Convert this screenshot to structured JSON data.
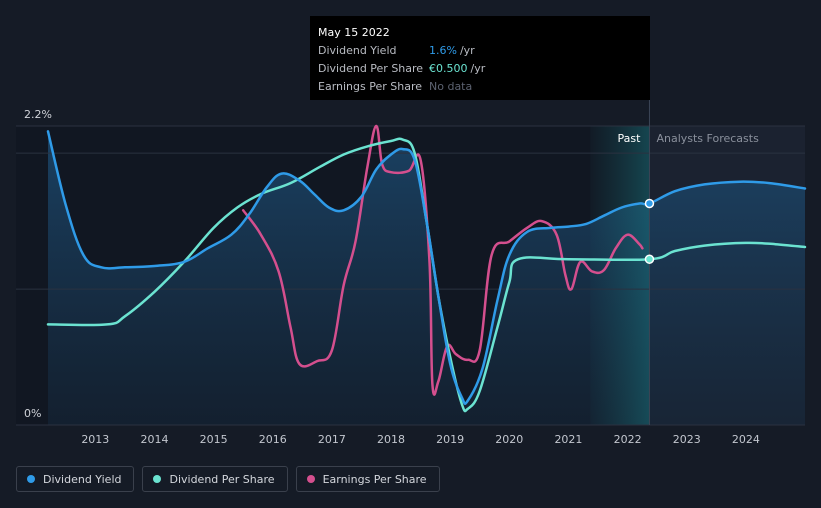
{
  "tooltip": {
    "date": "May 15 2022",
    "rows": [
      {
        "label": "Dividend Yield",
        "value": "1.6%",
        "unit": "/yr"
      },
      {
        "label": "Dividend Per Share",
        "value": "€0.500",
        "unit": "/yr"
      },
      {
        "label": "Earnings Per Share",
        "value": "No data",
        "unit": ""
      }
    ]
  },
  "labels": {
    "past": "Past",
    "forecast": "Analysts Forecasts"
  },
  "legend": [
    {
      "label": "Dividend Yield",
      "color": "#2f9be8"
    },
    {
      "label": "Dividend Per Share",
      "color": "#6be3d1"
    },
    {
      "label": "Earnings Per Share",
      "color": "#d44f8e"
    }
  ],
  "chart_data": {
    "type": "line",
    "y_tick_labels": [
      "2.2%",
      "0%"
    ],
    "ylim": [
      0,
      2.2
    ],
    "x_ticks": [
      "2013",
      "2014",
      "2015",
      "2016",
      "2017",
      "2018",
      "2019",
      "2020",
      "2021",
      "2022",
      "2023",
      "2024"
    ],
    "xlim": [
      2012.2,
      2025.0
    ],
    "past_region": [
      2021.37,
      2022.37
    ],
    "grid": "horizontal",
    "series": [
      {
        "name": "Dividend Yield",
        "color": "#2f9be8",
        "points": [
          [
            2012.2,
            2.16
          ],
          [
            2012.5,
            1.62
          ],
          [
            2012.8,
            1.25
          ],
          [
            2013.1,
            1.16
          ],
          [
            2013.5,
            1.16
          ],
          [
            2014.0,
            1.17
          ],
          [
            2014.5,
            1.2
          ],
          [
            2014.9,
            1.3
          ],
          [
            2015.3,
            1.4
          ],
          [
            2015.6,
            1.55
          ],
          [
            2015.9,
            1.75
          ],
          [
            2016.15,
            1.85
          ],
          [
            2016.45,
            1.8
          ],
          [
            2016.7,
            1.7
          ],
          [
            2016.95,
            1.6
          ],
          [
            2017.2,
            1.58
          ],
          [
            2017.5,
            1.68
          ],
          [
            2017.75,
            1.88
          ],
          [
            2018.0,
            1.99
          ],
          [
            2018.2,
            2.03
          ],
          [
            2018.4,
            1.95
          ],
          [
            2018.6,
            1.5
          ],
          [
            2018.8,
            0.95
          ],
          [
            2019.0,
            0.45
          ],
          [
            2019.2,
            0.2
          ],
          [
            2019.3,
            0.18
          ],
          [
            2019.55,
            0.42
          ],
          [
            2019.8,
            0.92
          ],
          [
            2020.0,
            1.25
          ],
          [
            2020.3,
            1.42
          ],
          [
            2020.7,
            1.45
          ],
          [
            2021.0,
            1.46
          ],
          [
            2021.3,
            1.48
          ],
          [
            2021.6,
            1.54
          ],
          [
            2021.9,
            1.6
          ],
          [
            2022.2,
            1.63
          ],
          [
            2022.37,
            1.63
          ],
          [
            2022.8,
            1.72
          ],
          [
            2023.3,
            1.77
          ],
          [
            2023.9,
            1.79
          ],
          [
            2024.4,
            1.78
          ],
          [
            2025.0,
            1.74
          ]
        ]
      },
      {
        "name": "Dividend Per Share",
        "color": "#6be3d1",
        "points": [
          [
            2012.2,
            0.74
          ],
          [
            2013.2,
            0.74
          ],
          [
            2013.5,
            0.8
          ],
          [
            2014.0,
            0.98
          ],
          [
            2014.5,
            1.2
          ],
          [
            2015.0,
            1.45
          ],
          [
            2015.4,
            1.6
          ],
          [
            2015.8,
            1.7
          ],
          [
            2016.3,
            1.78
          ],
          [
            2016.8,
            1.9
          ],
          [
            2017.2,
            1.99
          ],
          [
            2017.6,
            2.05
          ],
          [
            2018.0,
            2.09
          ],
          [
            2018.2,
            2.1
          ],
          [
            2018.4,
            2.0
          ],
          [
            2018.6,
            1.5
          ],
          [
            2018.8,
            0.95
          ],
          [
            2019.0,
            0.5
          ],
          [
            2019.2,
            0.15
          ],
          [
            2019.3,
            0.12
          ],
          [
            2019.5,
            0.25
          ],
          [
            2019.8,
            0.72
          ],
          [
            2020.0,
            1.05
          ],
          [
            2020.15,
            1.22
          ],
          [
            2021.0,
            1.22
          ],
          [
            2022.37,
            1.22
          ],
          [
            2022.8,
            1.28
          ],
          [
            2023.3,
            1.32
          ],
          [
            2024.0,
            1.34
          ],
          [
            2024.5,
            1.33
          ],
          [
            2025.0,
            1.31
          ]
        ]
      },
      {
        "name": "Earnings Per Share",
        "color": "#d44f8e",
        "points": [
          [
            2015.5,
            1.58
          ],
          [
            2015.8,
            1.4
          ],
          [
            2016.1,
            1.13
          ],
          [
            2016.3,
            0.72
          ],
          [
            2016.45,
            0.45
          ],
          [
            2016.75,
            0.47
          ],
          [
            2017.0,
            0.55
          ],
          [
            2017.2,
            1.03
          ],
          [
            2017.4,
            1.35
          ],
          [
            2017.6,
            1.9
          ],
          [
            2017.75,
            2.2
          ],
          [
            2017.85,
            1.92
          ],
          [
            2018.0,
            1.86
          ],
          [
            2018.3,
            1.87
          ],
          [
            2018.5,
            1.95
          ],
          [
            2018.65,
            1.2
          ],
          [
            2018.7,
            0.3
          ],
          [
            2018.8,
            0.32
          ],
          [
            2018.95,
            0.58
          ],
          [
            2019.1,
            0.52
          ],
          [
            2019.3,
            0.48
          ],
          [
            2019.5,
            0.55
          ],
          [
            2019.7,
            1.25
          ],
          [
            2020.0,
            1.35
          ],
          [
            2020.3,
            1.45
          ],
          [
            2020.55,
            1.5
          ],
          [
            2020.8,
            1.4
          ],
          [
            2020.95,
            1.1
          ],
          [
            2021.05,
            1.0
          ],
          [
            2021.2,
            1.2
          ],
          [
            2021.4,
            1.13
          ],
          [
            2021.6,
            1.14
          ],
          [
            2021.8,
            1.3
          ],
          [
            2022.0,
            1.4
          ],
          [
            2022.2,
            1.33
          ],
          [
            2022.25,
            1.3
          ]
        ]
      }
    ],
    "markers": [
      {
        "series": "Dividend Yield",
        "x": 2022.37,
        "y": 1.63
      },
      {
        "series": "Dividend Per Share",
        "x": 2022.37,
        "y": 1.22
      }
    ]
  }
}
